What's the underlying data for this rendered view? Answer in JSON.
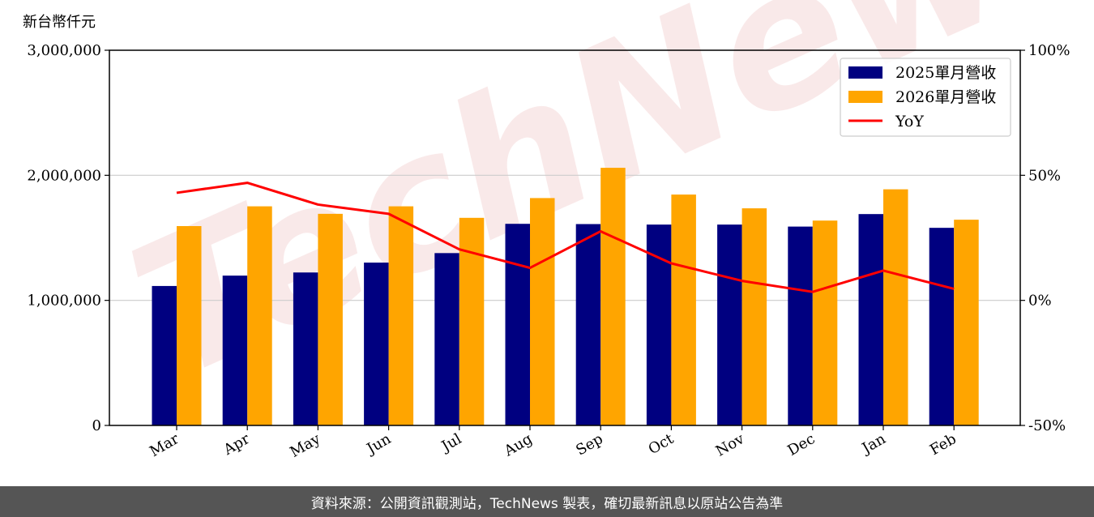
{
  "chart_data": {
    "type": "bar",
    "unit_label": "新台幣仟元",
    "categories": [
      "Mar",
      "Apr",
      "May",
      "Jun",
      "Jul",
      "Aug",
      "Sep",
      "Oct",
      "Nov",
      "Dec",
      "Jan",
      "Feb"
    ],
    "series": [
      {
        "name": "2025單月營收",
        "color": "#000080",
        "values": [
          1115000,
          1198000,
          1223000,
          1302000,
          1378000,
          1612000,
          1610000,
          1606000,
          1606000,
          1590000,
          1690000,
          1580000
        ]
      },
      {
        "name": "2026單月營收",
        "color": "#FFA500",
        "values": [
          1594000,
          1752000,
          1692000,
          1752000,
          1660000,
          1818000,
          2060000,
          1846000,
          1736000,
          1638000,
          1888000,
          1645000
        ]
      }
    ],
    "line_series": {
      "name": "YoY",
      "color": "#FF0000",
      "axis": "right",
      "values": [
        43.0,
        47.0,
        38.3,
        34.6,
        20.4,
        13.0,
        27.6,
        14.8,
        7.8,
        3.4,
        11.9,
        4.6
      ]
    },
    "left_axis": {
      "min": 0,
      "max": 3000000,
      "ticks": [
        0,
        1000000,
        2000000,
        3000000
      ],
      "tick_labels": [
        "0",
        "1,000,000",
        "2,000,000",
        "3,000,000"
      ]
    },
    "right_axis": {
      "min": -50,
      "max": 100,
      "ticks": [
        -50,
        0,
        50,
        100
      ],
      "tick_labels": [
        "-50%",
        "0%",
        "50%",
        "100%"
      ]
    },
    "grid": true,
    "legend_position": "top-right"
  },
  "watermark": {
    "text": "TechNews",
    "color": "#E8A0A0"
  },
  "footer": {
    "text": "資料來源：公開資訊觀測站，TechNews 製表，確切最新訊息以原站公告為準"
  }
}
